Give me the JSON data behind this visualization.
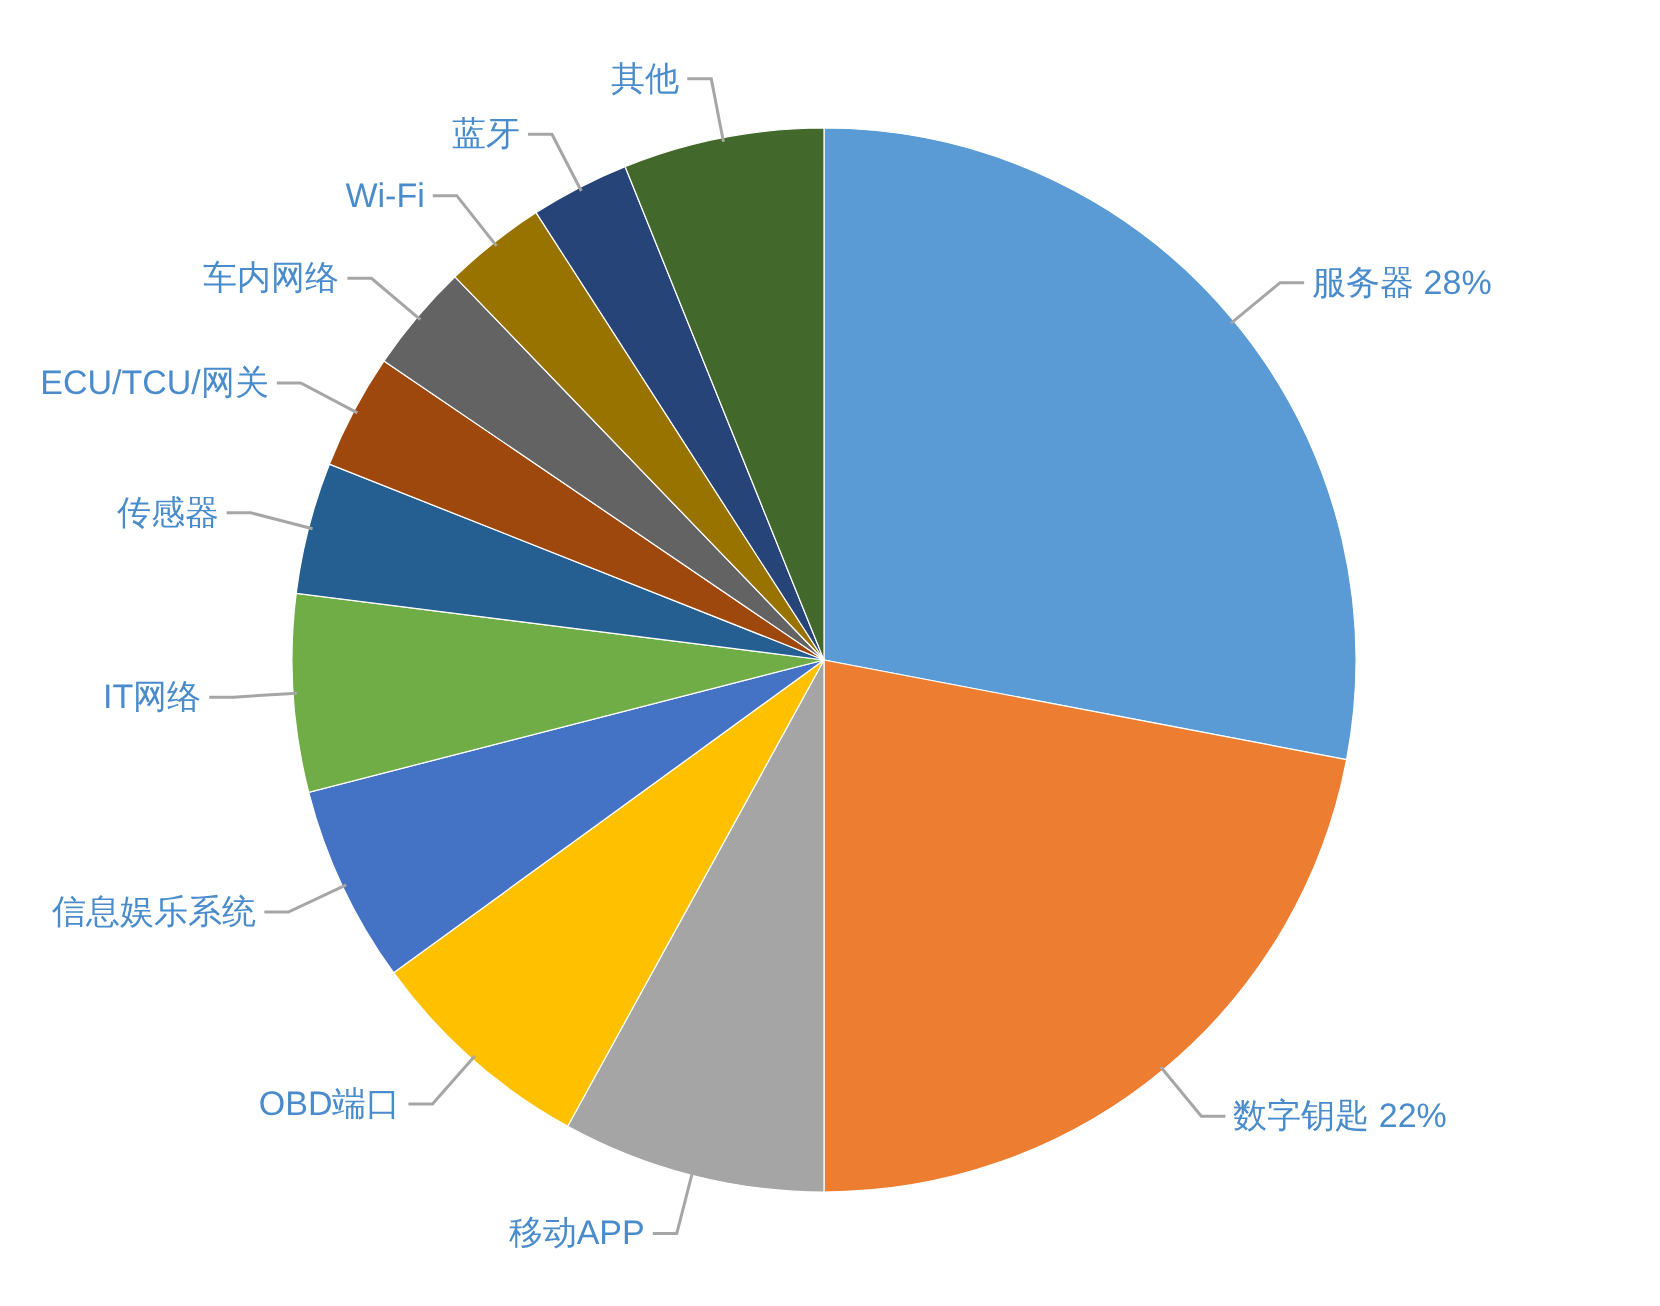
{
  "chart_data": {
    "type": "pie",
    "categories": [
      "服务器",
      "数字钥匙",
      "移动APP",
      "OBD端口",
      "信息娱乐系统",
      "IT网络",
      "传感器",
      "ECU/TCU/网关",
      "车内网络",
      "Wi-Fi",
      "蓝牙",
      "其他"
    ],
    "values": [
      28,
      22,
      8,
      7,
      6,
      6,
      4,
      3.5,
      3.3,
      3.1,
      3,
      6.1
    ],
    "value_labels": [
      "28%",
      "22%",
      null,
      null,
      null,
      null,
      null,
      null,
      null,
      null,
      null,
      null
    ],
    "colors": [
      "#5b9bd5",
      "#ed7d31",
      "#a5a5a5",
      "#ffc000",
      "#4472c4",
      "#70ad47",
      "#255e91",
      "#9e480e",
      "#636363",
      "#997300",
      "#264478",
      "#43682b"
    ]
  }
}
